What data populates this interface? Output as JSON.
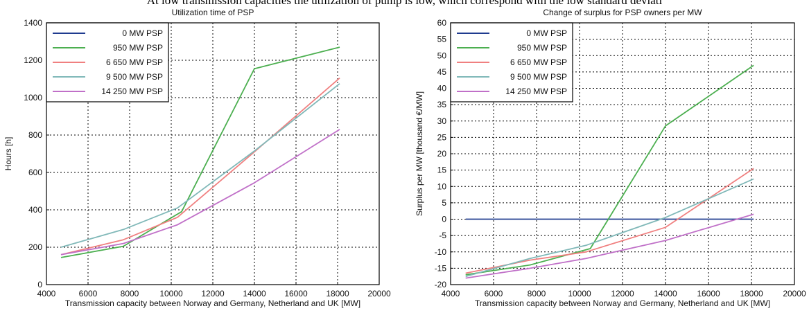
{
  "caption": "At low transmission capacities the utilization of pump is low, which correspond with the low standard deviati",
  "colors": {
    "0 MW PSP": "#1f3b8f",
    "950 MW PSP": "#4caf50",
    "6 650 MW PSP": "#f08080",
    "9 500 MW PSP": "#80b8b8",
    "14 250 MW PSP": "#c070c8"
  },
  "chart_data": [
    {
      "type": "line",
      "title": "Utilization time of PSP",
      "xlabel": "Transmission capacity between Norway and Germany, Netherland and UK [MW]",
      "ylabel": "Hours [h]",
      "xlim": [
        4000,
        20000
      ],
      "ylim": [
        0,
        1400
      ],
      "xticks": [
        "4000",
        "6000",
        "8000",
        "10000",
        "12000",
        "14000",
        "16000",
        "18000",
        "20000"
      ],
      "xtick_values": [
        4000,
        6000,
        8000,
        10000,
        12000,
        14000,
        16000,
        18000,
        20000
      ],
      "yticks": [
        "0",
        "200",
        "400",
        "600",
        "800",
        "1000",
        "1200",
        "1400"
      ],
      "ytick_values": [
        0,
        200,
        400,
        600,
        800,
        1000,
        1200,
        1400
      ],
      "grid": true,
      "legend_position": "top-left",
      "legend": [
        "0 MW PSP",
        "950 MW PSP",
        "6 650 MW PSP",
        "9 500 MW PSP",
        "14 250 MW PSP"
      ],
      "series": [
        {
          "name": "0 MW PSP",
          "x": [],
          "y": []
        },
        {
          "name": "950 MW PSP",
          "x": [
            4700,
            7700,
            10500,
            14000,
            18100
          ],
          "y": [
            145,
            205,
            390,
            1155,
            1270
          ]
        },
        {
          "name": "6 650 MW PSP",
          "x": [
            4700,
            7700,
            10300,
            14000,
            18100
          ],
          "y": [
            160,
            240,
            360,
            710,
            1105
          ]
        },
        {
          "name": "9 500 MW PSP",
          "x": [
            4700,
            7700,
            10300,
            14000,
            18100
          ],
          "y": [
            200,
            295,
            410,
            715,
            1075
          ]
        },
        {
          "name": "14 250 MW PSP",
          "x": [
            4700,
            7700,
            10300,
            14000,
            18100
          ],
          "y": [
            160,
            220,
            320,
            545,
            830
          ]
        }
      ]
    },
    {
      "type": "line",
      "title": "Change of surplus for PSP owners per MW",
      "xlabel": "Transmission capacity between Norway and Germany, Netherland and UK [MW]",
      "ylabel": "Surplus per MW [thousand €/MW]",
      "xlim": [
        4000,
        20000
      ],
      "ylim": [
        -20,
        60
      ],
      "xticks": [
        "4000",
        "6000",
        "8000",
        "10000",
        "12000",
        "14000",
        "16000",
        "18000",
        "20000"
      ],
      "xtick_values": [
        4000,
        6000,
        8000,
        10000,
        12000,
        14000,
        16000,
        18000,
        20000
      ],
      "yticks": [
        "-20",
        "-15",
        "-10",
        "-5",
        "0",
        "5",
        "10",
        "15",
        "20",
        "25",
        "30",
        "35",
        "40",
        "45",
        "50",
        "55",
        "60"
      ],
      "ytick_values": [
        -20,
        -15,
        -10,
        -5,
        0,
        5,
        10,
        15,
        20,
        25,
        30,
        35,
        40,
        45,
        50,
        55,
        60
      ],
      "grid": true,
      "legend_position": "top-left",
      "legend": [
        "0 MW PSP",
        "950 MW PSP",
        "6 650 MW PSP",
        "9 500 MW PSP",
        "14 250 MW PSP"
      ],
      "series": [
        {
          "name": "0 MW PSP",
          "x": [
            4700,
            18100
          ],
          "y": [
            0,
            0
          ]
        },
        {
          "name": "950 MW PSP",
          "x": [
            4700,
            7700,
            10500,
            14000,
            18100
          ],
          "y": [
            -17,
            -14,
            -9,
            28.5,
            47
          ]
        },
        {
          "name": "6 650 MW PSP",
          "x": [
            4700,
            7700,
            10300,
            14000,
            18100
          ],
          "y": [
            -16.5,
            -12.5,
            -10,
            -2.5,
            15.5
          ]
        },
        {
          "name": "9 500 MW PSP",
          "x": [
            4700,
            7700,
            10300,
            14000,
            18100
          ],
          "y": [
            -17.5,
            -12,
            -8,
            0.5,
            12.3
          ]
        },
        {
          "name": "14 250 MW PSP",
          "x": [
            4700,
            7700,
            10300,
            14000,
            18100
          ],
          "y": [
            -18,
            -15,
            -12,
            -6.5,
            1.5
          ]
        }
      ]
    }
  ]
}
